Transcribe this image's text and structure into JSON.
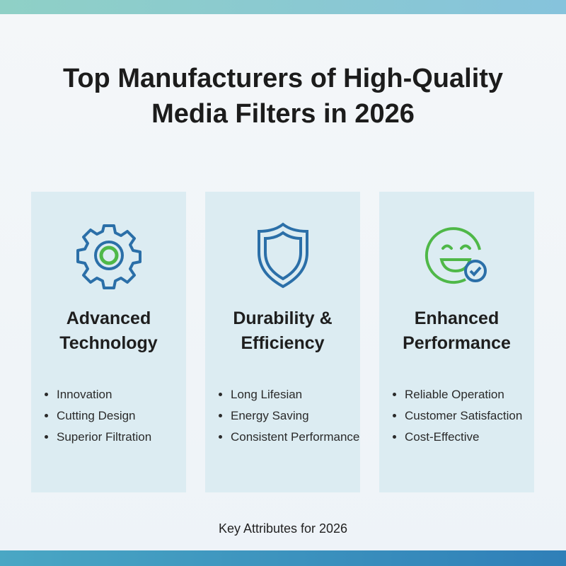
{
  "header": {
    "title": "Top Manufacturers of High-Quality Media Filters in 2026"
  },
  "cards": [
    {
      "title": "Advanced Technology",
      "items": [
        "Innovation",
        "Cutting Design",
        "Superior Filtration"
      ]
    },
    {
      "title": "Durability & Efficiency",
      "items": [
        "Long Lifesian",
        "Energy Saving",
        "Consistent Performance"
      ]
    },
    {
      "title": "Enhanced Performance",
      "items": [
        "Reliable Operation",
        "Customer Satisfaction",
        "Cost-Effective"
      ]
    }
  ],
  "footer": {
    "caption": "Key Attributes for 2026"
  }
}
